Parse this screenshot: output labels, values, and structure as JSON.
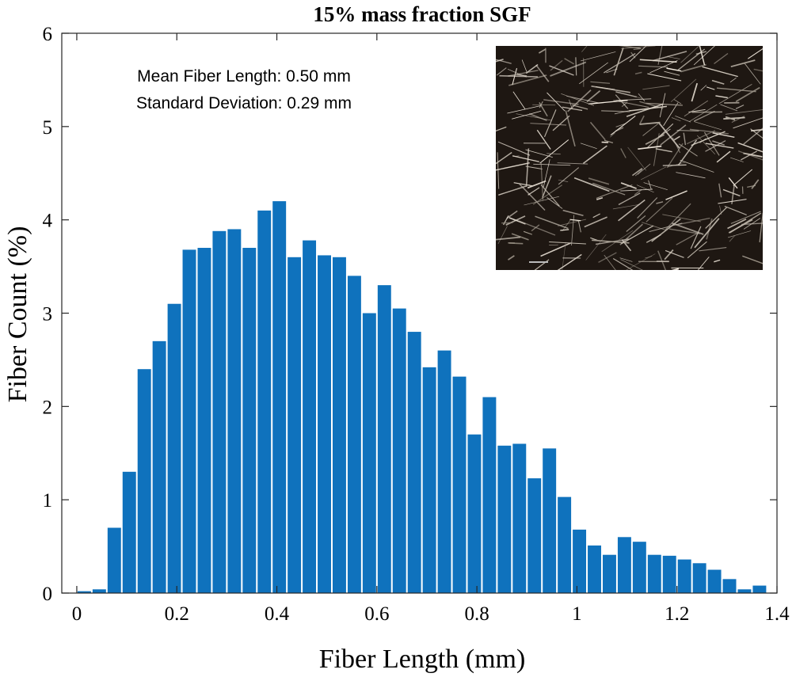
{
  "chart_data": {
    "type": "bar",
    "title": "15% mass fraction SGF",
    "xlabel": "Fiber Length (mm)",
    "ylabel": "Fiber Count (%)",
    "xlim": [
      -0.03,
      1.4
    ],
    "ylim": [
      0,
      6
    ],
    "xticks": [
      0,
      0.2,
      0.4,
      0.6,
      0.8,
      1,
      1.2,
      1.4
    ],
    "xtick_labels": [
      "0",
      "0.2",
      "0.4",
      "0.6",
      "0.8",
      "1",
      "1.2",
      "1.4"
    ],
    "yticks": [
      0,
      1,
      2,
      3,
      4,
      5,
      6
    ],
    "ytick_labels": [
      "0",
      "1",
      "2",
      "3",
      "4",
      "5",
      "6"
    ],
    "bin_width": 0.03,
    "bin_start": 0,
    "values": [
      0.02,
      0.04,
      0.7,
      1.3,
      2.4,
      2.7,
      3.1,
      3.68,
      3.7,
      3.88,
      3.9,
      3.7,
      4.1,
      4.2,
      3.6,
      3.78,
      3.62,
      3.6,
      3.4,
      3.0,
      3.3,
      3.05,
      2.8,
      2.42,
      2.6,
      2.32,
      1.7,
      2.1,
      1.58,
      1.6,
      1.23,
      1.55,
      1.03,
      0.68,
      0.51,
      0.41,
      0.6,
      0.55,
      0.41,
      0.4,
      0.36,
      0.32,
      0.25,
      0.15,
      0.04,
      0.08
    ],
    "bar_color": "#0F72BD",
    "annotations": [
      "Mean Fiber Length: 0.50 mm",
      "Standard Deviation: 0.29 mm"
    ],
    "inset": {
      "type": "micrograph",
      "description_name": "fiber-micrograph-inset"
    }
  }
}
